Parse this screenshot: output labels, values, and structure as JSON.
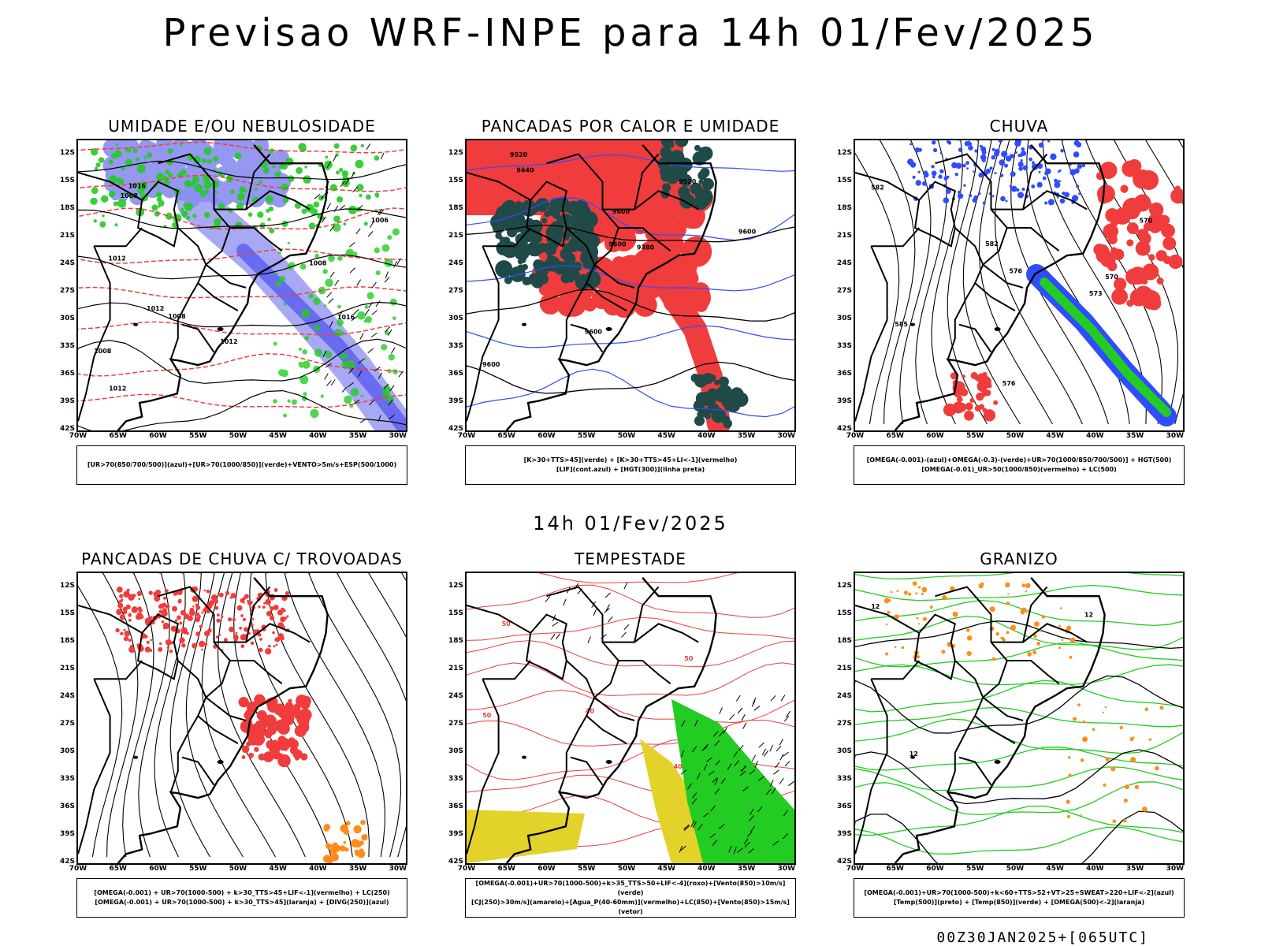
{
  "header": {
    "title": "Previsao WRF-INPE  para 14h 01/Fev/2025"
  },
  "mid_time_label": "14h 01/Fev/2025",
  "footer": {
    "run_stamp": "00Z30JAN2025+[065UTC]"
  },
  "axes": {
    "lat_ticks": [
      "12S",
      "15S",
      "18S",
      "21S",
      "24S",
      "27S",
      "30S",
      "33S",
      "36S",
      "39S",
      "42S"
    ],
    "lon_ticks": [
      "70W",
      "65W",
      "60W",
      "55W",
      "50W",
      "45W",
      "40W",
      "35W",
      "30W"
    ]
  },
  "colors": {
    "humidity_blue": "#8a8cf0",
    "humidity_blue_dark": "#5a5cf0",
    "green": "#22cc22",
    "red": "#f03c3c",
    "dark_teal": "#1f4a48",
    "yellow": "#e3d22a",
    "orange": "#ff8c1a",
    "blue_line": "#2f4cff"
  },
  "panels": [
    {
      "id": "umidade",
      "title": "UMIDADE E/OU NEBULOSIDADE",
      "legend_lines": [
        "[UR>70(850/700/500)](azul)+[UR>70(1000/850)](verde)+VENTO>5m/s+ESP(500/1000)"
      ],
      "contour_labels": [
        "1008",
        "1016",
        "1012",
        "1006",
        "1008",
        "1012",
        "1012",
        "1016",
        "1008",
        "1012",
        "1008"
      ]
    },
    {
      "id": "pancadas_calor",
      "title": "PANCADAS POR CALOR E UMIDADE",
      "legend_lines": [
        "[K>30+TTS>45](verde) + [K>30+TTS>45+LI<-1](vermelho)",
        "[LIF](cont.azul) + [HGT(300)](linha preta)"
      ],
      "contour_labels": [
        "9600",
        "9600",
        "9600",
        "9600",
        "9520",
        "9440",
        "9520",
        "9380",
        "9600"
      ]
    },
    {
      "id": "chuva",
      "title": "CHUVA",
      "legend_lines": [
        "[OMEGA(-0.001)-(azul)+OMEGA(-0.3)-(verde)+UR>70(1000/850/700/500)] + HGT(500)",
        "[OMEGA(-0.01)_UR>50(1000/850)(vermelho) + LC(500)"
      ],
      "contour_labels": [
        "582",
        "576",
        "573",
        "570",
        "576",
        "570",
        "582",
        "585"
      ]
    },
    {
      "id": "trovoadas",
      "title": "PANCADAS DE CHUVA C/ TROVOADAS",
      "legend_lines": [
        "[OMEGA(-0.001) + UR>70(1000-500) + k>30_TTS>45+LIF<-1](vermelho) + LC(250)",
        "[OMEGA(-0.001) + UR>70(1000-500) + k>30_TTS>45](laranja) + [DIVG(250)](azul)"
      ],
      "contour_labels": []
    },
    {
      "id": "tempestade",
      "title": "TEMPESTADE",
      "legend_lines": [
        "[OMEGA(-0.001)+UR>70(1000-500)+k>35_TTS>50+LIF<-4](roxo)+[Vento(850)>10m/s](verde)",
        "[CJ(250)>30m/s](amarelo)+[Agua_P(40-60mm)](vermelho)+LC(850)+[Vento(850)>15m/s](vetor)"
      ],
      "contour_labels": [
        "50",
        "50",
        "40",
        "40",
        "50"
      ]
    },
    {
      "id": "granizo",
      "title": "GRANIZO",
      "legend_lines": [
        "[OMEGA(-0.001)+UR>70(1000-500)+k<60+TTS>52+VT>25+SWEAT>220+LIF<-2](azul)",
        "[Temp(500)](preto) + [Temp(850)](verde) + [OMEGA(500)<-2](laranja)"
      ],
      "contour_labels": [
        "12",
        "12",
        "12"
      ]
    }
  ]
}
